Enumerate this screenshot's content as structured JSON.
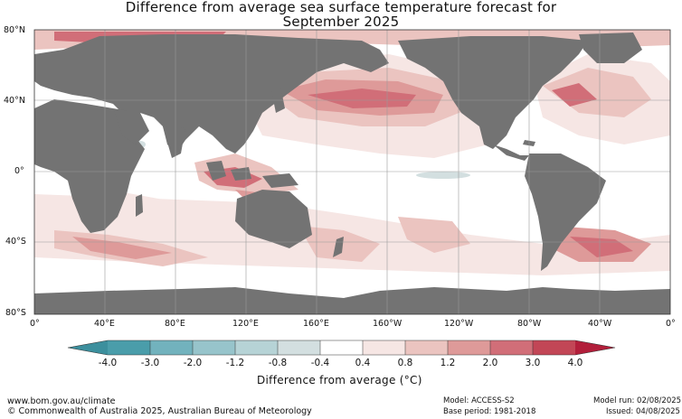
{
  "title_line1": "Difference from average sea surface temperature forecast for",
  "title_line2": "September 2025",
  "lat_labels": [
    "80°N",
    "40°N",
    "0°",
    "40°S",
    "80°S"
  ],
  "lon_labels": [
    "0°",
    "40°E",
    "80°E",
    "120°E",
    "160°E",
    "160°W",
    "120°W",
    "80°W",
    "40°W",
    "0°"
  ],
  "colorbar": {
    "ticks": [
      "-4.0",
      "-3.0",
      "-2.0",
      "-1.2",
      "-0.8",
      "-0.4",
      "0.4",
      "0.8",
      "1.2",
      "2.0",
      "3.0",
      "4.0"
    ],
    "colors": [
      "#4a9daa",
      "#72b2bd",
      "#97c4cb",
      "#b6d3d6",
      "#d3dfe0",
      "#ffffff",
      "#f6e6e4",
      "#ebc4c0",
      "#de9a99",
      "#d16e78",
      "#c24656"
    ],
    "extend_low_color": "#3c8f9d",
    "extend_high_color": "#b21f3b",
    "label": "Difference from average (°C)"
  },
  "footer": {
    "website": "www.bom.gov.au/climate",
    "copyright": "© Commonwealth of Australia 2025, Australian Bureau of Meteorology",
    "model": "Model: ACCESS-S2",
    "base_period": "Base period: 1981-2018",
    "model_run": "Model run: 02/08/2025",
    "issued": "Issued: 04/08/2025"
  },
  "colors": {
    "land": "#737373",
    "ocean": "#ffffff",
    "grid": "#9a9a9a"
  }
}
